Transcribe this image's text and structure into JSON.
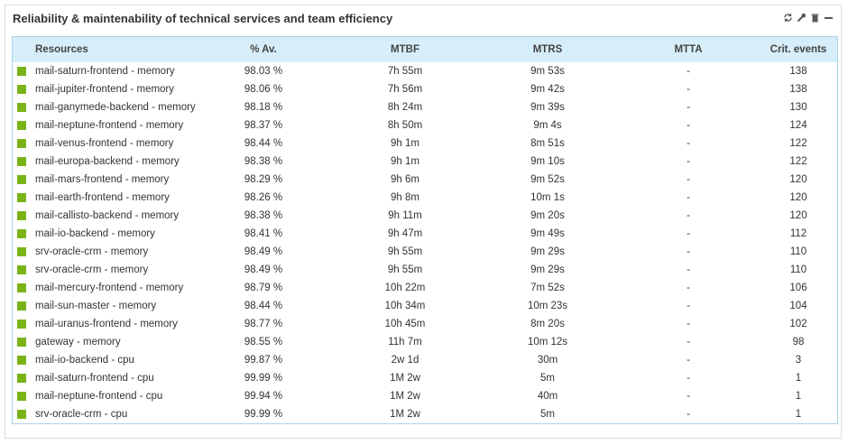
{
  "header": {
    "title": "Reliability & maintenability of technical services and team efficiency"
  },
  "table": {
    "columns": [
      "Resources",
      "% Av.",
      "MTBF",
      "MTRS",
      "MTTA",
      "Crit. events"
    ],
    "rows": [
      [
        "mail-saturn-frontend - memory",
        "98.03 %",
        "7h 55m",
        "9m 53s",
        "-",
        "138"
      ],
      [
        "mail-jupiter-frontend - memory",
        "98.06 %",
        "7h 56m",
        "9m 42s",
        "-",
        "138"
      ],
      [
        "mail-ganymede-backend - memory",
        "98.18 %",
        "8h 24m",
        "9m 39s",
        "-",
        "130"
      ],
      [
        "mail-neptune-frontend - memory",
        "98.37 %",
        "8h 50m",
        "9m 4s",
        "-",
        "124"
      ],
      [
        "mail-venus-frontend - memory",
        "98.44 %",
        "9h 1m",
        "8m 51s",
        "-",
        "122"
      ],
      [
        "mail-europa-backend - memory",
        "98.38 %",
        "9h 1m",
        "9m 10s",
        "-",
        "122"
      ],
      [
        "mail-mars-frontend - memory",
        "98.29 %",
        "9h 6m",
        "9m 52s",
        "-",
        "120"
      ],
      [
        "mail-earth-frontend - memory",
        "98.26 %",
        "9h 8m",
        "10m 1s",
        "-",
        "120"
      ],
      [
        "mail-callisto-backend - memory",
        "98.38 %",
        "9h 11m",
        "9m 20s",
        "-",
        "120"
      ],
      [
        "mail-io-backend - memory",
        "98.41 %",
        "9h 47m",
        "9m 49s",
        "-",
        "112"
      ],
      [
        "srv-oracle-crm - memory",
        "98.49 %",
        "9h 55m",
        "9m 29s",
        "-",
        "110"
      ],
      [
        "srv-oracle-crm - memory",
        "98.49 %",
        "9h 55m",
        "9m 29s",
        "-",
        "110"
      ],
      [
        "mail-mercury-frontend - memory",
        "98.79 %",
        "10h 22m",
        "7m 52s",
        "-",
        "106"
      ],
      [
        "mail-sun-master - memory",
        "98.44 %",
        "10h 34m",
        "10m 23s",
        "-",
        "104"
      ],
      [
        "mail-uranus-frontend - memory",
        "98.77 %",
        "10h 45m",
        "8m 20s",
        "-",
        "102"
      ],
      [
        "gateway - memory",
        "98.55 %",
        "11h 7m",
        "10m 12s",
        "-",
        "98"
      ],
      [
        "mail-io-backend - cpu",
        "99.87 %",
        "2w 1d",
        "30m",
        "-",
        "3"
      ],
      [
        "mail-saturn-frontend - cpu",
        "99.99 %",
        "1M 2w",
        "5m",
        "-",
        "1"
      ],
      [
        "mail-neptune-frontend - cpu",
        "99.94 %",
        "1M 2w",
        "40m",
        "-",
        "1"
      ],
      [
        "srv-oracle-crm - cpu",
        "99.99 %",
        "1M 2w",
        "5m",
        "-",
        "1"
      ]
    ]
  }
}
